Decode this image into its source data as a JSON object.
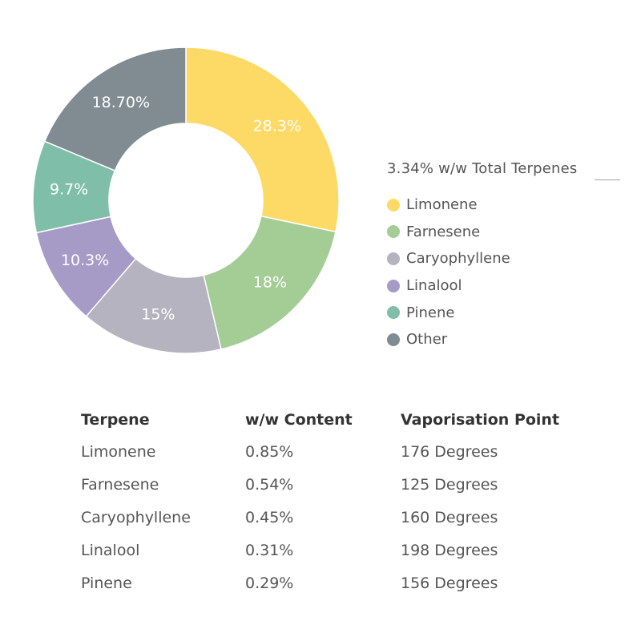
{
  "chart_data": {
    "type": "pie",
    "variant": "donut",
    "title": "3.34% w/w Total Terpenes",
    "legend_position": "right",
    "slices": [
      {
        "name": "Limonene",
        "value": 28.3,
        "label": "28.3%",
        "color": "#FDD966"
      },
      {
        "name": "Farnesene",
        "value": 18,
        "label": "18%",
        "color": "#A3CD94"
      },
      {
        "name": "Caryophyllene",
        "value": 15,
        "label": "15%",
        "color": "#B6B3C0"
      },
      {
        "name": "Linalool",
        "value": 10.3,
        "label": "10.3%",
        "color": "#A69BC6"
      },
      {
        "name": "Pinene",
        "value": 9.7,
        "label": "9.7%",
        "color": "#7FBFAA"
      },
      {
        "name": "Other",
        "value": 18.7,
        "label": "18.70%",
        "color": "#808C92"
      }
    ]
  },
  "table": {
    "headers": [
      "Terpene",
      "w/w Content",
      "Vaporisation Point"
    ],
    "rows": [
      [
        "Limonene",
        "0.85%",
        "176 Degrees"
      ],
      [
        "Farnesene",
        "0.54%",
        "125 Degrees"
      ],
      [
        "Caryophyllene",
        "0.45%",
        "160 Degrees"
      ],
      [
        "Linalool",
        "0.31%",
        "198 Degrees"
      ],
      [
        "Pinene",
        "0.29%",
        "156 Degrees"
      ]
    ]
  }
}
